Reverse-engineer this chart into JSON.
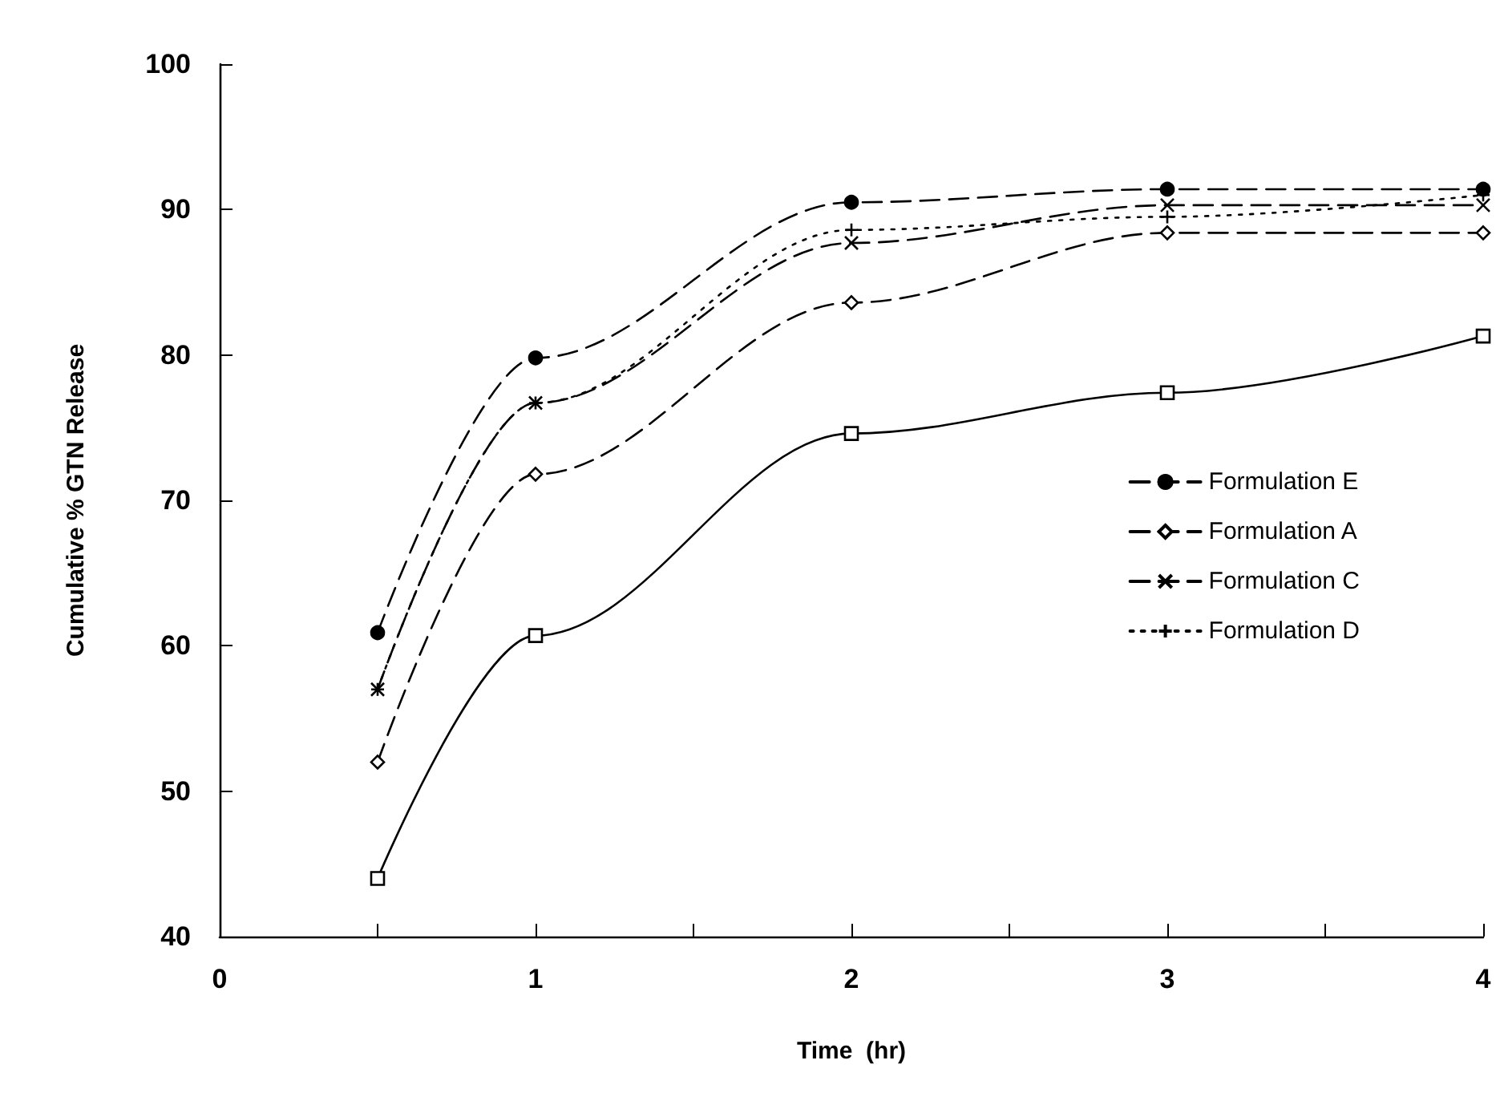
{
  "chart_data": {
    "type": "line",
    "xlabel": "Time  (hr)",
    "ylabel": "Cumulative % GTN Release",
    "x": [
      0.5,
      1,
      2,
      3,
      4
    ],
    "series": [
      {
        "color": "#000000",
        "marker": "square",
        "line_style": "solid",
        "values": [
          44,
          60.7,
          74.6,
          77.4,
          81.3
        ]
      },
      {
        "name": "Formulation E",
        "color": "#000000",
        "marker": "circle",
        "line_style": "dashed",
        "values": [
          60.9,
          79.8,
          90.5,
          91.4,
          91.4
        ]
      },
      {
        "name": "Formulation A",
        "color": "#000000",
        "marker": "diamond",
        "line_style": "dashed",
        "values": [
          52,
          71.8,
          83.6,
          88.4,
          88.4
        ]
      },
      {
        "name": "Formulation C",
        "color": "#000000",
        "marker": "cross",
        "line_style": "dashed",
        "values": [
          57,
          76.7,
          87.7,
          90.3,
          90.3
        ]
      },
      {
        "name": "Formulation D",
        "color": "#000000",
        "marker": "plus",
        "line_style": "dotted",
        "values": [
          57,
          76.7,
          88.6,
          89.5,
          91
        ]
      }
    ],
    "xlim": [
      0,
      4
    ],
    "xticks": [
      0,
      {
        "value": 0.5,
        "label": null
      },
      1,
      {
        "value": 1.5,
        "label": null
      },
      2,
      {
        "value": 2.5,
        "label": null
      },
      3,
      {
        "value": 3.5,
        "label": null
      },
      4
    ],
    "ylim": [
      40,
      100
    ],
    "yticks": [
      40,
      50,
      60,
      70,
      80,
      90,
      100
    ],
    "grid": false,
    "legend": "right"
  }
}
